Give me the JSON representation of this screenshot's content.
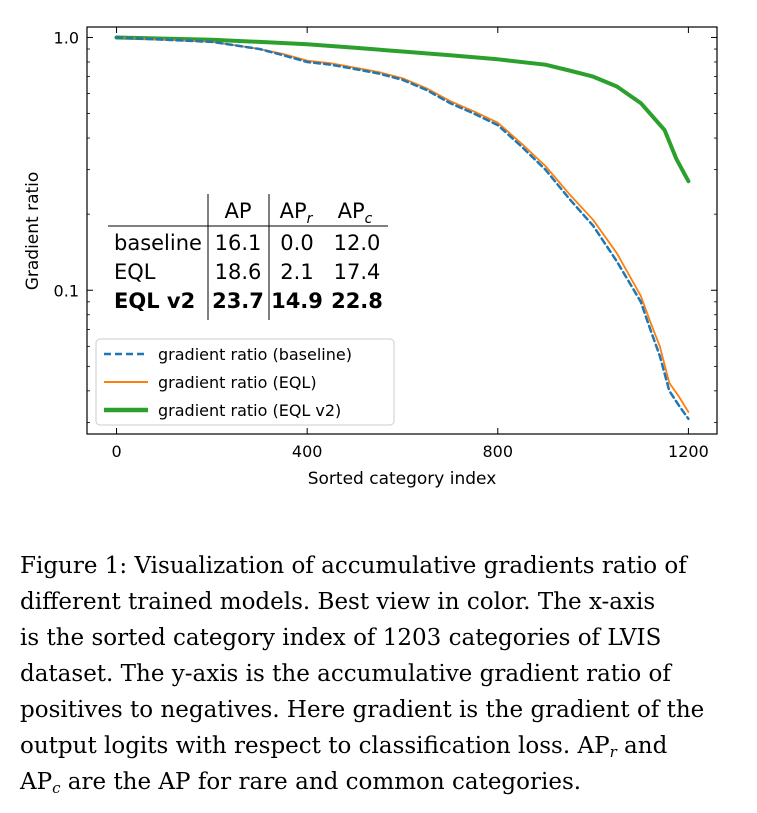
{
  "chart_data": {
    "type": "line",
    "xlabel": "Sorted category index",
    "ylabel": "Gradient ratio",
    "xscale": "linear",
    "yscale": "log",
    "xlim": [
      -62,
      1260
    ],
    "ylim": [
      0.027,
      1.1
    ],
    "xticks": [
      0,
      400,
      800,
      1200
    ],
    "xtick_labels": [
      "0",
      "400",
      "800",
      "1200"
    ],
    "yticks": [
      0.1,
      1.0
    ],
    "ytick_labels": [
      "0.1",
      "1.0"
    ],
    "legend_position": "lower-left",
    "series": [
      {
        "name": "gradient ratio (baseline)",
        "color": "#1f77b4",
        "style": "dashed",
        "x": [
          0,
          50,
          100,
          150,
          200,
          250,
          300,
          350,
          400,
          450,
          500,
          550,
          600,
          650,
          700,
          750,
          800,
          850,
          900,
          950,
          1000,
          1050,
          1100,
          1120,
          1140,
          1160,
          1180,
          1200
        ],
        "y": [
          1.0,
          0.99,
          0.98,
          0.97,
          0.96,
          0.93,
          0.9,
          0.85,
          0.8,
          0.78,
          0.75,
          0.72,
          0.68,
          0.62,
          0.55,
          0.5,
          0.45,
          0.37,
          0.3,
          0.23,
          0.18,
          0.13,
          0.09,
          0.07,
          0.055,
          0.04,
          0.035,
          0.031
        ]
      },
      {
        "name": "gradient ratio (EQL)",
        "color": "#ff7f0e",
        "style": "solid",
        "x": [
          0,
          50,
          100,
          150,
          200,
          250,
          300,
          350,
          400,
          450,
          500,
          550,
          600,
          650,
          700,
          750,
          800,
          850,
          900,
          950,
          1000,
          1050,
          1100,
          1120,
          1140,
          1160,
          1180,
          1200
        ],
        "y": [
          1.0,
          0.99,
          0.98,
          0.97,
          0.96,
          0.93,
          0.9,
          0.86,
          0.81,
          0.79,
          0.76,
          0.73,
          0.69,
          0.63,
          0.56,
          0.51,
          0.46,
          0.38,
          0.31,
          0.24,
          0.19,
          0.14,
          0.095,
          0.075,
          0.06,
          0.043,
          0.038,
          0.033
        ]
      },
      {
        "name": "gradient ratio (EQL v2)",
        "color": "#2ca02c",
        "style": "solid",
        "x": [
          0,
          100,
          200,
          300,
          400,
          500,
          600,
          700,
          800,
          900,
          950,
          1000,
          1050,
          1100,
          1150,
          1175,
          1200
        ],
        "y": [
          1.0,
          0.99,
          0.98,
          0.96,
          0.94,
          0.91,
          0.88,
          0.85,
          0.82,
          0.78,
          0.74,
          0.7,
          0.64,
          0.55,
          0.43,
          0.33,
          0.27
        ]
      }
    ],
    "inset_table": {
      "headers": [
        "",
        "AP",
        "AP_r",
        "AP_c"
      ],
      "rows": [
        {
          "name": "baseline",
          "ap": "16.1",
          "apr": "0.0",
          "apc": "12.0"
        },
        {
          "name": "EQL",
          "ap": "18.6",
          "apr": "2.1",
          "apc": "17.4"
        },
        {
          "name": "EQL v2",
          "ap": "23.7",
          "apr": "14.9",
          "apc": "22.8"
        }
      ]
    }
  },
  "caption": {
    "line1": "Figure 1: Visualization of accumulative gradients ratio of",
    "line2": "different trained models.  Best view in color.  The x-axis",
    "line3": "is the sorted category index of 1203 categories of LVIS",
    "line4": "dataset.  The y-axis is the accumulative gradient ratio of",
    "line5": "positives to negatives. Here gradient is the gradient of the",
    "line6_a": "output logits with respect to classification loss.  AP",
    "line6_sub": "r",
    "line6_b": " and",
    "line7_a": "AP",
    "line7_sub": "c",
    "line7_b": " are the AP for rare and common categories."
  }
}
